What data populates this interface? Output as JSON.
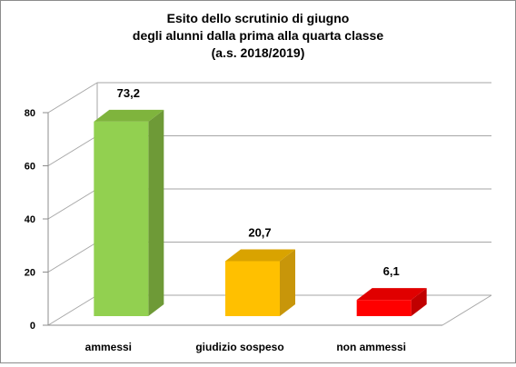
{
  "chart_data": {
    "type": "bar",
    "title": [
      "Esito dello scrutinio di giugno",
      "degli alunni dalla prima alla quarta classe",
      "(a.s. 2018/2019)"
    ],
    "categories": [
      "ammessi",
      "giudizio sospeso",
      "non ammessi"
    ],
    "values": [
      73.2,
      20.7,
      6.1
    ],
    "data_labels": [
      "73,2",
      "20,7",
      "6,1"
    ],
    "colors": [
      {
        "front": "#92d050",
        "side": "#6e9a37",
        "top": "#7fb43d"
      },
      {
        "front": "#ffc000",
        "side": "#c8960a",
        "top": "#d9a300"
      },
      {
        "front": "#ff0000",
        "side": "#c00000",
        "top": "#e00000"
      }
    ],
    "y_ticks": [
      "0",
      "20",
      "40",
      "60",
      "80"
    ],
    "ylim": [
      0,
      80
    ],
    "xlabel": "",
    "ylabel": "",
    "grid": true,
    "legend": "none",
    "style": "3d-column"
  }
}
